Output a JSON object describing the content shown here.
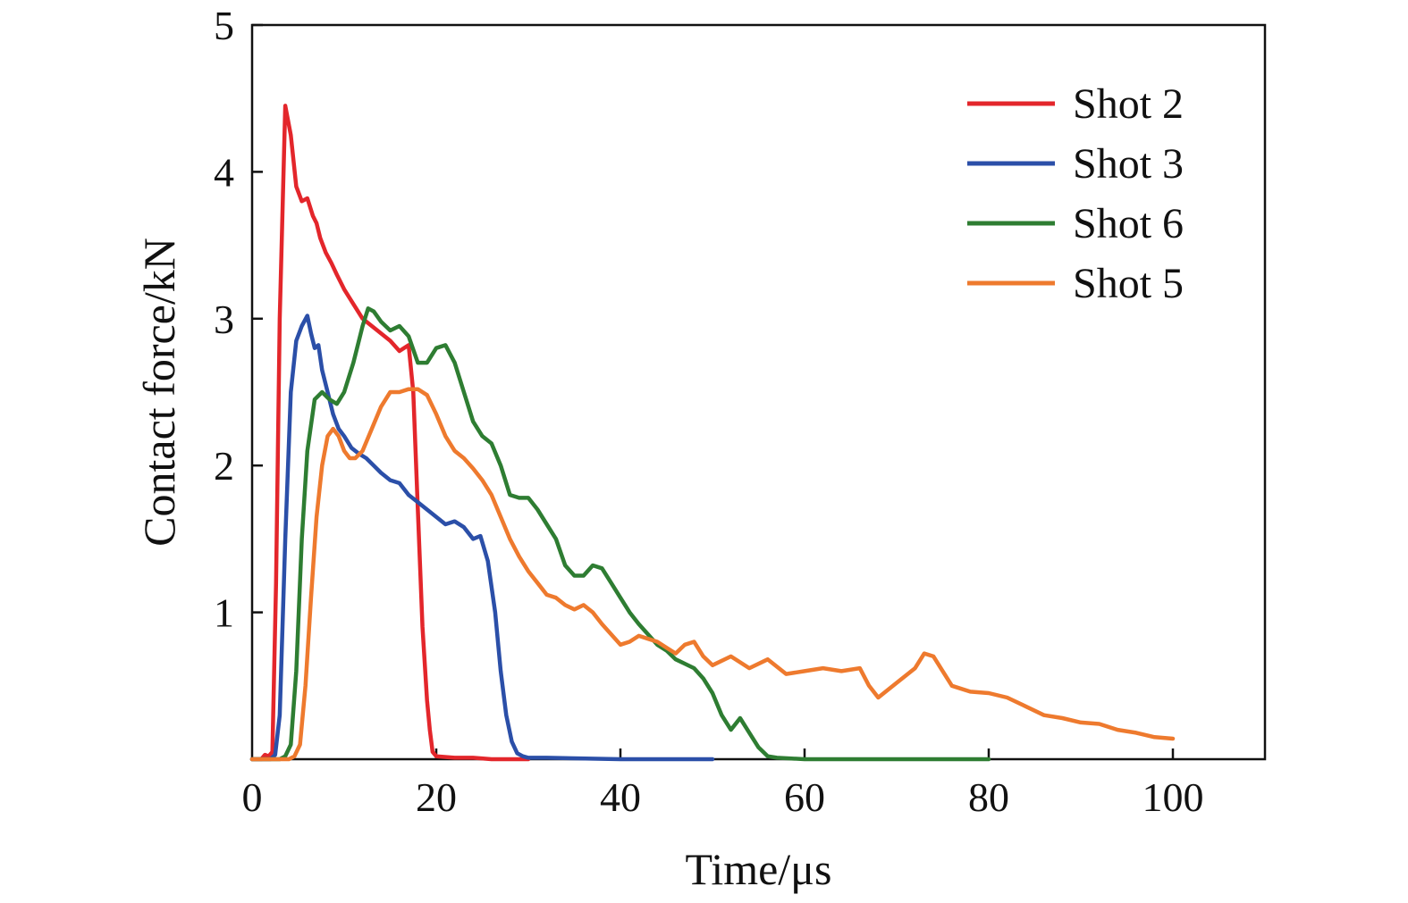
{
  "chart_data": {
    "type": "line",
    "title": "",
    "xlabel": "Time/μs",
    "ylabel": "Contact force/kN",
    "xlim": [
      0,
      110
    ],
    "ylim": [
      0,
      5
    ],
    "x_ticks": [
      "0",
      "20",
      "40",
      "60",
      "80",
      "100"
    ],
    "y_ticks": [
      "1",
      "2",
      "3",
      "4",
      "5"
    ],
    "grid": false,
    "legend_position": "top-right",
    "series": [
      {
        "name": "Shot 2",
        "color": "#e3262b",
        "x": [
          0,
          1,
          1.4,
          1.8,
          2.2,
          2.6,
          3.0,
          3.6,
          4.2,
          4.8,
          5.4,
          6.0,
          6.6,
          7.0,
          7.4,
          8.0,
          8.6,
          9.2,
          10.0,
          11.0,
          12.0,
          13.0,
          14.0,
          15.0,
          16.0,
          17.0,
          17.5,
          18.0,
          18.5,
          19.0,
          19.3,
          19.6,
          20.0,
          22.0,
          24.0,
          26.0,
          28.0,
          30.0
        ],
        "y": [
          0,
          0,
          0.03,
          0.02,
          0.05,
          1.2,
          3.0,
          4.45,
          4.25,
          3.9,
          3.8,
          3.82,
          3.7,
          3.65,
          3.55,
          3.45,
          3.38,
          3.3,
          3.2,
          3.1,
          3.0,
          2.95,
          2.9,
          2.85,
          2.78,
          2.82,
          2.5,
          1.7,
          0.9,
          0.4,
          0.2,
          0.05,
          0.02,
          0.01,
          0.01,
          0.0,
          0.0,
          0.0
        ]
      },
      {
        "name": "Shot 3",
        "color": "#2b4fa8",
        "x": [
          0,
          2.0,
          2.5,
          3.0,
          3.6,
          4.2,
          4.8,
          5.4,
          6.0,
          6.4,
          6.8,
          7.2,
          7.6,
          8.2,
          8.8,
          9.4,
          10.0,
          10.8,
          11.6,
          12.4,
          13.2,
          14.0,
          15.0,
          16.0,
          17.0,
          18.0,
          19.0,
          20.0,
          21.0,
          22.0,
          23.0,
          24.0,
          24.8,
          25.6,
          26.4,
          27.0,
          27.6,
          28.2,
          28.8,
          29.4,
          30.0,
          32.0,
          40.0,
          50.0
        ],
        "y": [
          0,
          0,
          0.03,
          0.3,
          1.5,
          2.5,
          2.85,
          2.95,
          3.02,
          2.9,
          2.8,
          2.82,
          2.65,
          2.5,
          2.35,
          2.25,
          2.2,
          2.12,
          2.08,
          2.05,
          2.0,
          1.95,
          1.9,
          1.88,
          1.8,
          1.75,
          1.7,
          1.65,
          1.6,
          1.62,
          1.58,
          1.5,
          1.52,
          1.35,
          1.0,
          0.6,
          0.3,
          0.12,
          0.04,
          0.02,
          0.01,
          0.01,
          0.0,
          0.0
        ]
      },
      {
        "name": "Shot 6",
        "color": "#2e7d32",
        "x": [
          0,
          3.0,
          3.6,
          4.2,
          4.8,
          5.4,
          6.0,
          6.8,
          7.6,
          8.4,
          9.2,
          10.0,
          11.0,
          12.0,
          12.6,
          13.2,
          14.0,
          15.0,
          16.0,
          17.0,
          18.0,
          19.0,
          20.0,
          21.0,
          22.0,
          23.0,
          24.0,
          25.0,
          26.0,
          27.0,
          28.0,
          29.0,
          30.0,
          31.0,
          32.0,
          33.0,
          34.0,
          35.0,
          36.0,
          37.0,
          38.0,
          39.0,
          40.0,
          41.0,
          42.0,
          43.0,
          44.0,
          45.0,
          46.0,
          47.0,
          48.0,
          49.0,
          50.0,
          51.0,
          52.0,
          53.0,
          54.0,
          55.0,
          56.0,
          57.0,
          60.0,
          70.0,
          80.0
        ],
        "y": [
          0,
          0,
          0.02,
          0.1,
          0.6,
          1.5,
          2.1,
          2.45,
          2.5,
          2.45,
          2.42,
          2.5,
          2.7,
          2.95,
          3.07,
          3.05,
          2.98,
          2.92,
          2.95,
          2.88,
          2.7,
          2.7,
          2.8,
          2.82,
          2.7,
          2.5,
          2.3,
          2.2,
          2.15,
          2.0,
          1.8,
          1.78,
          1.78,
          1.7,
          1.6,
          1.5,
          1.32,
          1.25,
          1.25,
          1.32,
          1.3,
          1.2,
          1.1,
          1.0,
          0.92,
          0.85,
          0.78,
          0.74,
          0.68,
          0.65,
          0.62,
          0.55,
          0.45,
          0.3,
          0.2,
          0.28,
          0.18,
          0.08,
          0.02,
          0.01,
          0.0,
          0.0,
          0.0
        ]
      },
      {
        "name": "Shot 5",
        "color": "#ee7a2e",
        "x": [
          0,
          4.0,
          4.6,
          5.2,
          5.8,
          6.4,
          7.0,
          7.6,
          8.2,
          8.8,
          9.4,
          10.0,
          10.6,
          11.2,
          12.0,
          13.0,
          14.0,
          15.0,
          16.0,
          17.0,
          18.0,
          19.0,
          20.0,
          21.0,
          22.0,
          23.0,
          24.0,
          25.0,
          26.0,
          27.0,
          28.0,
          29.0,
          30.0,
          31.0,
          32.0,
          33.0,
          34.0,
          35.0,
          36.0,
          37.0,
          38.0,
          39.0,
          40.0,
          41.0,
          42.0,
          43.0,
          44.0,
          45.0,
          46.0,
          47.0,
          48.0,
          49.0,
          50.0,
          52.0,
          54.0,
          56.0,
          58.0,
          60.0,
          62.0,
          64.0,
          66.0,
          67.0,
          68.0,
          70.0,
          72.0,
          73.0,
          74.0,
          75.0,
          76.0,
          78.0,
          80.0,
          82.0,
          84.0,
          86.0,
          88.0,
          90.0,
          92.0,
          94.0,
          96.0,
          98.0,
          100.0
        ],
        "y": [
          0,
          0,
          0.02,
          0.1,
          0.5,
          1.1,
          1.65,
          2.0,
          2.2,
          2.25,
          2.2,
          2.1,
          2.05,
          2.05,
          2.1,
          2.25,
          2.4,
          2.5,
          2.5,
          2.52,
          2.52,
          2.48,
          2.35,
          2.2,
          2.1,
          2.05,
          1.98,
          1.9,
          1.8,
          1.65,
          1.5,
          1.38,
          1.28,
          1.2,
          1.12,
          1.1,
          1.05,
          1.02,
          1.05,
          1.0,
          0.92,
          0.85,
          0.78,
          0.8,
          0.84,
          0.82,
          0.8,
          0.76,
          0.72,
          0.78,
          0.8,
          0.7,
          0.64,
          0.7,
          0.62,
          0.68,
          0.58,
          0.6,
          0.62,
          0.6,
          0.62,
          0.5,
          0.42,
          0.52,
          0.62,
          0.72,
          0.7,
          0.6,
          0.5,
          0.46,
          0.45,
          0.42,
          0.36,
          0.3,
          0.28,
          0.25,
          0.24,
          0.2,
          0.18,
          0.15,
          0.14
        ]
      }
    ]
  }
}
